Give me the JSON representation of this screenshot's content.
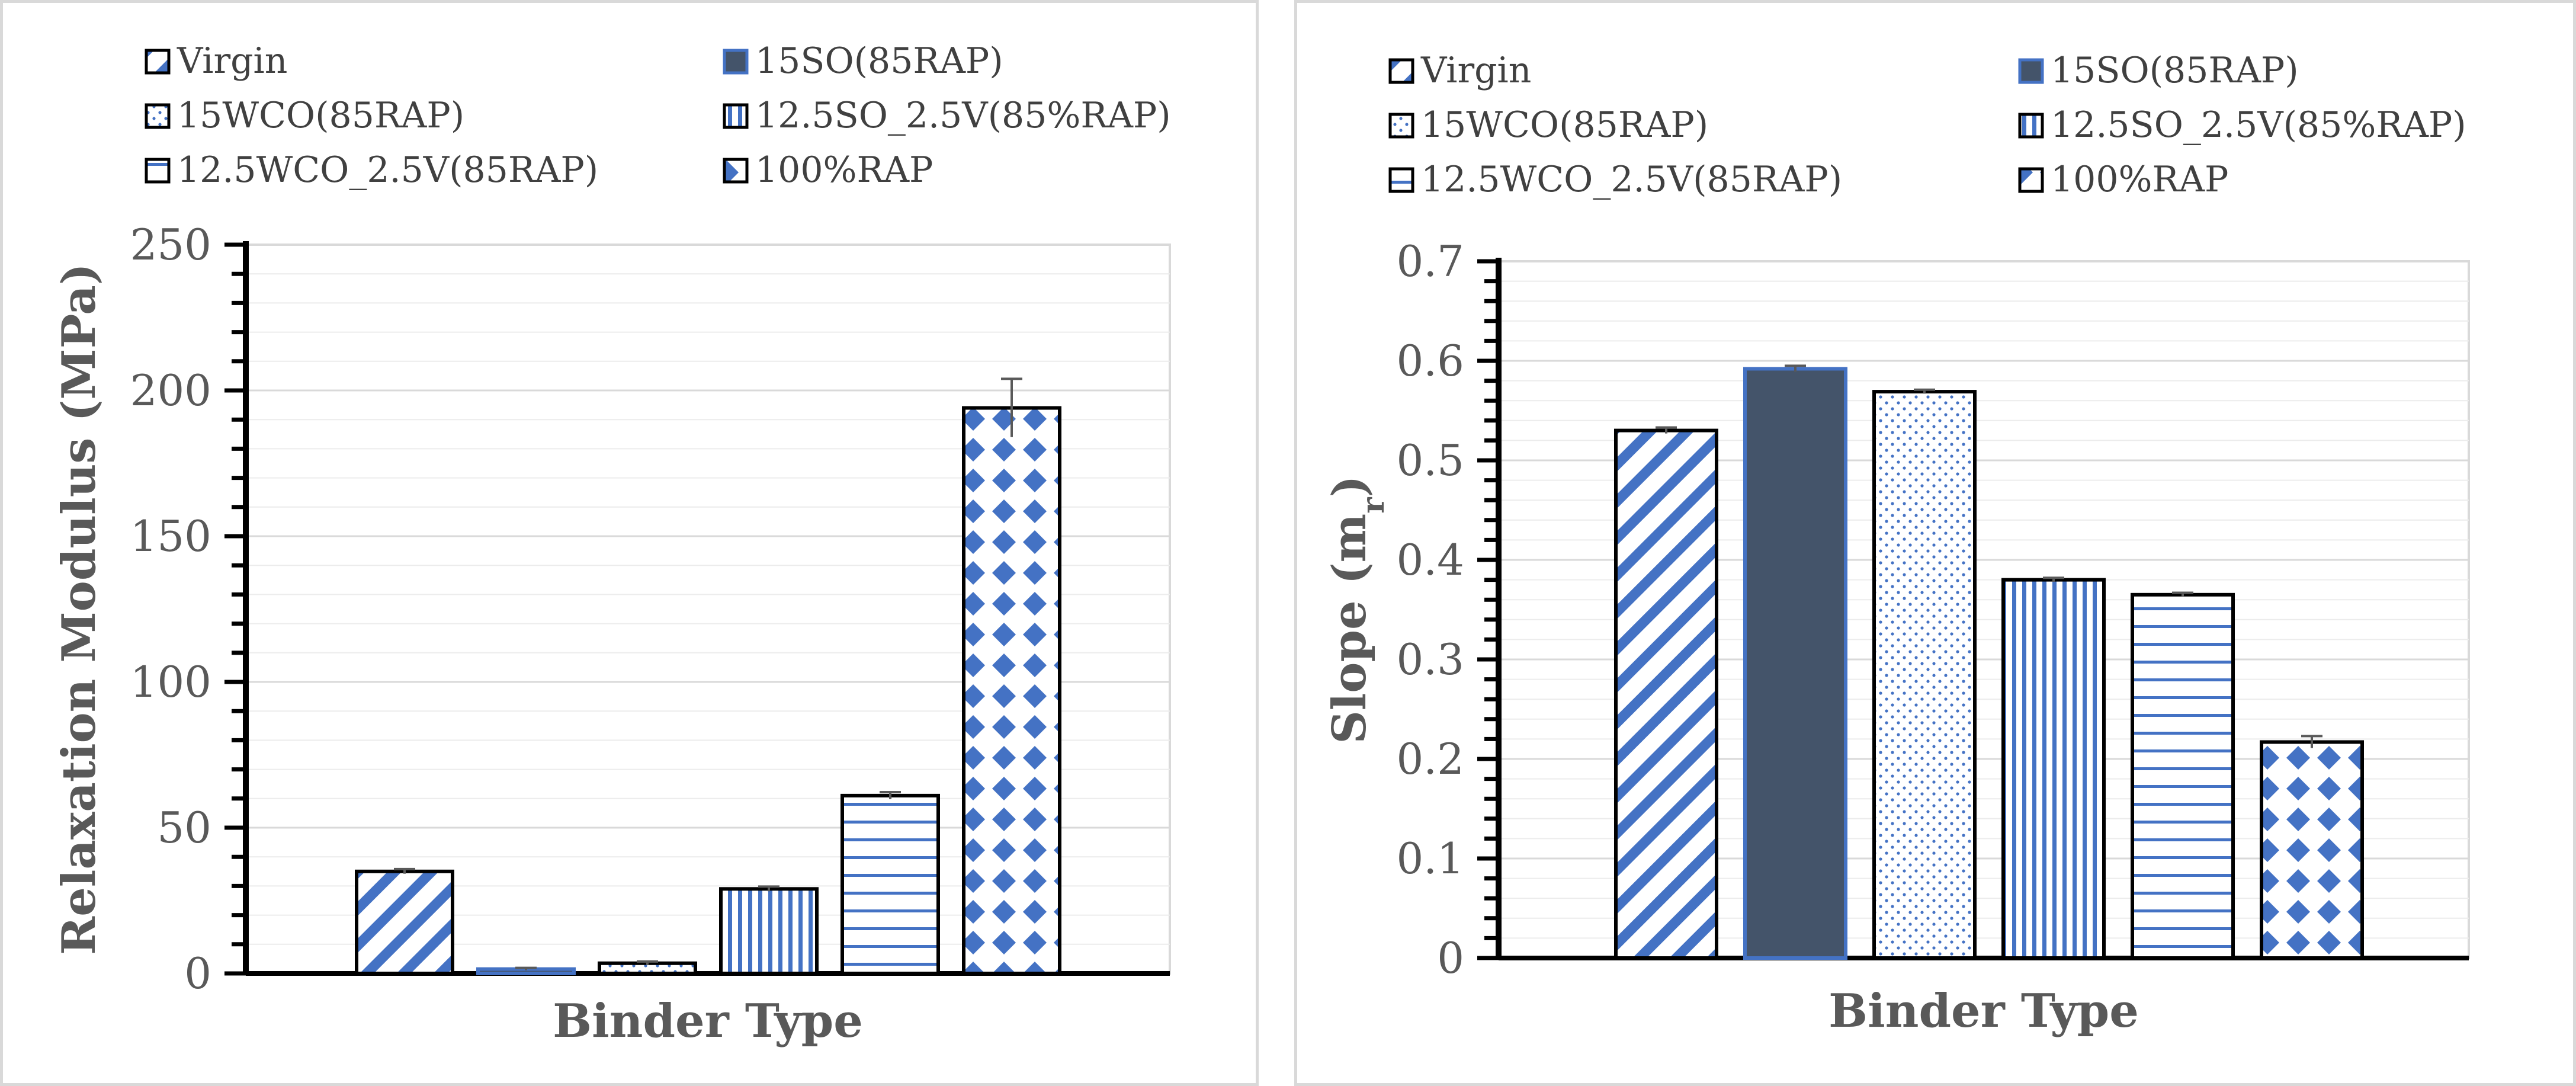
{
  "chart_data": [
    {
      "type": "bar",
      "title": "",
      "xlabel": "Binder Type",
      "ylabel": "Relaxation Modulus (MPa)",
      "ylim": [
        0,
        250
      ],
      "ytick_step": 50,
      "minor_step": 10,
      "grid": true,
      "legend_position": "top",
      "categories": [
        "Virgin",
        "15SO(85RAP)",
        "15WCO(85RAP)",
        "12.5SO_2.5V(85%RAP)",
        "12.5WCO_2.5V(85RAP)",
        "100%RAP"
      ],
      "values": [
        35,
        1.5,
        3.5,
        29,
        61,
        194
      ],
      "errors": [
        0.8,
        0.4,
        0.6,
        0.8,
        1.2,
        10
      ]
    },
    {
      "type": "bar",
      "title": "",
      "xlabel": "Binder Type",
      "ylabel": "Slope (m",
      "ylabel_sub": "r",
      "ylabel_close": ")",
      "ylim": [
        0,
        0.7
      ],
      "ytick_step": 0.1,
      "minor_step": 0.02,
      "grid": true,
      "legend_position": "top",
      "categories": [
        "Virgin",
        "15SO(85RAP)",
        "15WCO(85RAP)",
        "12.5SO_2.5V(85%RAP)",
        "12.5WCO_2.5V(85RAP)",
        "100%RAP"
      ],
      "values": [
        0.53,
        0.592,
        0.569,
        0.38,
        0.365,
        0.217
      ],
      "errors": [
        0.003,
        0.003,
        0.002,
        0.002,
        0.002,
        0.006
      ]
    }
  ],
  "colors": {
    "blue": "#4472c4",
    "navy": "#44546a",
    "axis": "#000000",
    "grid": "#d9d9d9"
  },
  "patterns": [
    "diagonal-stripes",
    "solid-navy",
    "dots",
    "vertical-stripes",
    "horizontal-stripes",
    "diamond-grid"
  ]
}
